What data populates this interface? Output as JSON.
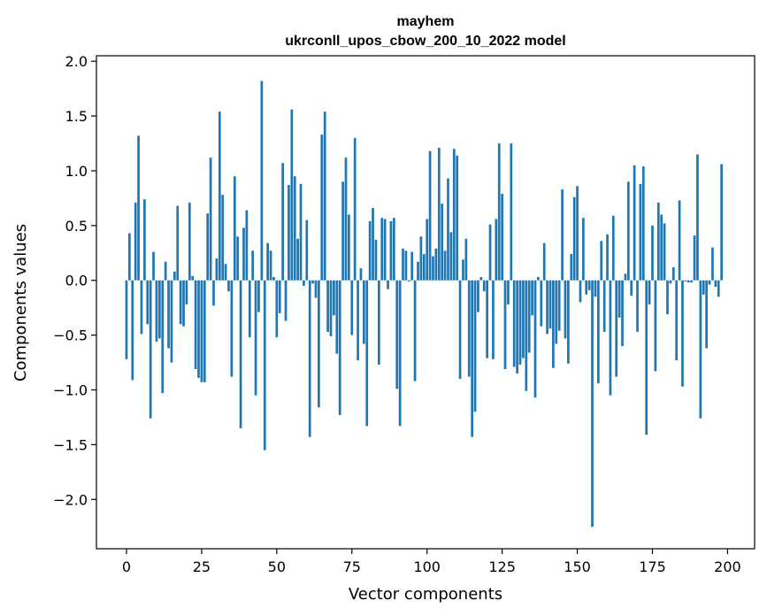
{
  "chart_data": {
    "type": "bar",
    "title": "mayhem",
    "subtitle": "ukrconll_upos_cbow_200_10_2022 model",
    "xlabel": "Vector components",
    "ylabel": "Components values",
    "xlim": [
      -10,
      209
    ],
    "ylim": [
      -2.45,
      2.05
    ],
    "xticks": [
      0,
      25,
      50,
      75,
      100,
      125,
      150,
      175,
      200
    ],
    "xtick_labels": [
      "0",
      "25",
      "50",
      "75",
      "100",
      "125",
      "150",
      "175",
      "200"
    ],
    "yticks": [
      2.0,
      1.5,
      1.0,
      0.5,
      0.0,
      -0.5,
      -1.0,
      -1.5,
      -2.0
    ],
    "ytick_labels": [
      "2.0",
      "1.5",
      "1.0",
      "0.5",
      "0.0",
      "−0.5",
      "−1.0",
      "−1.5",
      "−2.0"
    ],
    "bar_color": "#1f77b4",
    "grid": false,
    "values": [
      -0.72,
      0.43,
      -0.91,
      0.71,
      1.32,
      -0.49,
      0.74,
      -0.4,
      -1.26,
      0.26,
      -0.56,
      -0.53,
      -1.03,
      0.17,
      -0.62,
      -0.75,
      0.08,
      0.68,
      -0.4,
      -0.42,
      -0.22,
      0.71,
      0.04,
      -0.81,
      -0.89,
      -0.93,
      -0.93,
      0.61,
      1.12,
      -0.23,
      0.2,
      1.54,
      0.78,
      0.15,
      -0.1,
      -0.88,
      0.95,
      0.4,
      -1.35,
      0.48,
      0.64,
      -0.52,
      0.27,
      -1.05,
      -0.29,
      1.82,
      -1.55,
      0.34,
      0.27,
      0.03,
      -0.52,
      -0.3,
      1.07,
      -0.37,
      0.87,
      1.56,
      0.95,
      0.38,
      0.88,
      -0.05,
      0.55,
      -1.43,
      -0.03,
      -0.16,
      -1.16,
      1.33,
      1.54,
      -0.47,
      -0.51,
      -0.32,
      -0.67,
      -1.23,
      0.9,
      1.12,
      0.6,
      -0.5,
      1.3,
      -0.73,
      0.11,
      -0.58,
      -1.33,
      0.54,
      0.66,
      0.37,
      -0.77,
      0.57,
      0.56,
      -0.08,
      0.54,
      0.57,
      -0.99,
      -1.33,
      0.29,
      0.27,
      -0.01,
      0.26,
      -0.92,
      0.17,
      0.4,
      0.24,
      0.56,
      1.18,
      0.22,
      0.29,
      1.21,
      0.7,
      0.27,
      0.93,
      0.44,
      1.2,
      1.14,
      -0.9,
      0.19,
      0.38,
      -0.88,
      -1.43,
      -1.2,
      -0.29,
      0.03,
      -0.1,
      -0.71,
      0.51,
      -0.72,
      0.56,
      1.25,
      0.79,
      -0.81,
      -0.22,
      1.25,
      -0.79,
      -0.85,
      -0.77,
      -0.71,
      -1.01,
      -0.66,
      -0.32,
      -1.07,
      0.03,
      -0.42,
      0.34,
      -0.49,
      -0.44,
      -0.8,
      -0.58,
      -0.46,
      0.83,
      -0.53,
      -0.76,
      0.24,
      0.76,
      0.86,
      -0.2,
      0.57,
      -0.13,
      -0.09,
      -2.25,
      -0.15,
      -0.94,
      0.36,
      -0.47,
      0.42,
      -1.05,
      0.59,
      -0.88,
      -0.34,
      -0.6,
      0.06,
      0.9,
      -0.14,
      1.05,
      -0.47,
      0.88,
      1.04,
      -1.41,
      -0.22,
      0.5,
      -0.83,
      0.71,
      0.6,
      0.52,
      -0.31,
      -0.03,
      0.12,
      -0.73,
      0.73,
      -0.97,
      -0.01,
      -0.02,
      -0.02,
      0.41,
      1.15,
      -1.26,
      -0.13,
      -0.62,
      -0.04,
      0.3,
      -0.06,
      -0.15,
      1.06
    ]
  }
}
